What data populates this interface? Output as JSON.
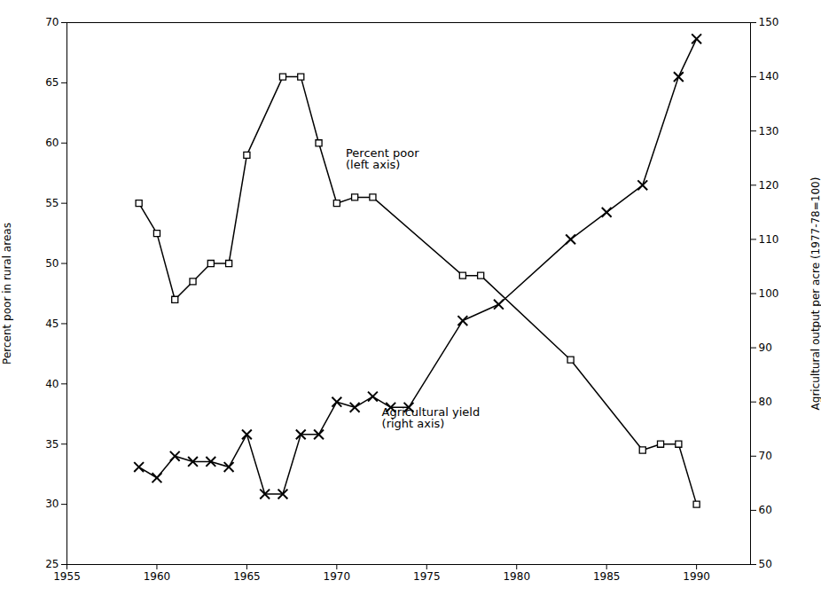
{
  "chart_data": {
    "type": "line",
    "ylabel": "Percent poor in rural areas",
    "y2label": "Agricultural output per acre (1977-78=100)",
    "xlim": [
      1955,
      1993
    ],
    "xticks": [
      1955,
      1960,
      1965,
      1970,
      1975,
      1980,
      1985,
      1990
    ],
    "ylim": [
      25,
      70
    ],
    "yticks": [
      25,
      30,
      35,
      40,
      45,
      50,
      55,
      60,
      65,
      70
    ],
    "y2lim": [
      50,
      150
    ],
    "y2ticks": [
      50,
      60,
      70,
      80,
      90,
      100,
      110,
      120,
      130,
      140,
      150
    ],
    "grid": false,
    "series": [
      {
        "x": [
          1959,
          1960,
          1961,
          1962,
          1963,
          1964,
          1965,
          1967,
          1968,
          1969,
          1970,
          1971,
          1972,
          1977,
          1978,
          1983,
          1987,
          1988,
          1989,
          1990
        ],
        "values": [
          55,
          52.5,
          47,
          48.5,
          50,
          50,
          59,
          65.5,
          65.5,
          60,
          55,
          55.5,
          55.5,
          49,
          49,
          42,
          34.5,
          35,
          35,
          30
        ],
        "color": "#000000",
        "marker": "square",
        "axis": "y"
      },
      {
        "x": [
          1959,
          1960,
          1961,
          1962,
          1963,
          1964,
          1965,
          1966,
          1967,
          1968,
          1969,
          1970,
          1971,
          1972,
          1973,
          1974,
          1977,
          1979,
          1983,
          1985,
          1987,
          1989,
          1990
        ],
        "values": [
          68,
          66,
          70,
          69,
          69,
          68,
          74,
          63,
          63,
          74,
          74,
          80,
          79,
          81,
          79,
          79,
          95,
          98,
          110,
          115,
          120,
          140,
          147
        ],
        "color": "#000000",
        "marker": "x",
        "axis": "y2"
      }
    ],
    "annotations": [
      {
        "text": "Percent poor\n(left axis)",
        "x": 1970.5,
        "y": 59.5,
        "axis": "y"
      },
      {
        "text": "Agricultural yield\n(right axis)",
        "x": 1972.5,
        "y": 79,
        "axis": "y2"
      }
    ]
  }
}
